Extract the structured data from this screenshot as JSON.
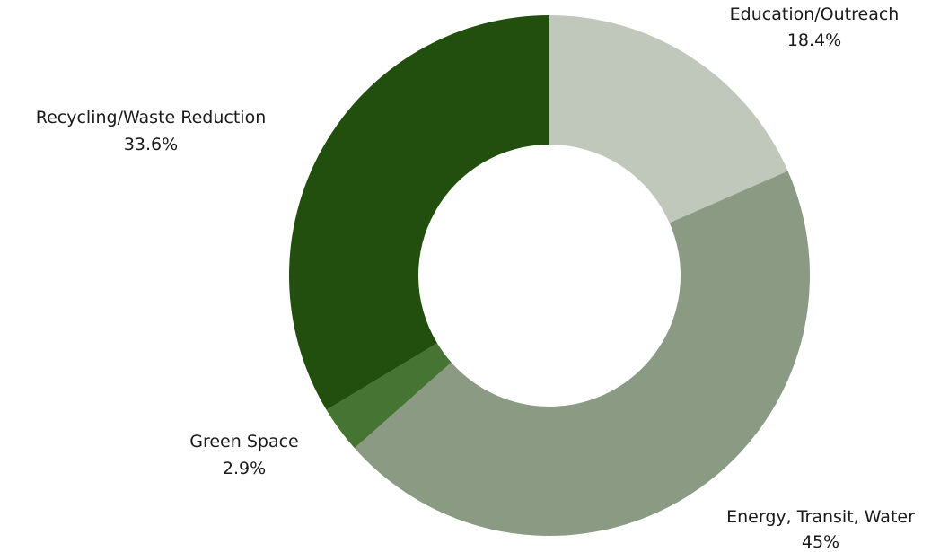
{
  "chart_data": {
    "type": "pie",
    "donut": true,
    "title": "",
    "slices": [
      {
        "label": "Education/Outreach",
        "value": 18.4,
        "value_label": "18.4%",
        "color": "#bfc8ba"
      },
      {
        "label": "Energy, Transit, Water",
        "value": 45,
        "value_label": "45%",
        "color": "#8a9a83"
      },
      {
        "label": "Green Space",
        "value": 2.9,
        "value_label": "2.9%",
        "color": "#467533"
      },
      {
        "label": "Recycling/Waste Reduction",
        "value": 33.6,
        "value_label": "33.6%",
        "color": "#224f0e"
      }
    ],
    "legend": "none",
    "labels_position": "outside"
  }
}
